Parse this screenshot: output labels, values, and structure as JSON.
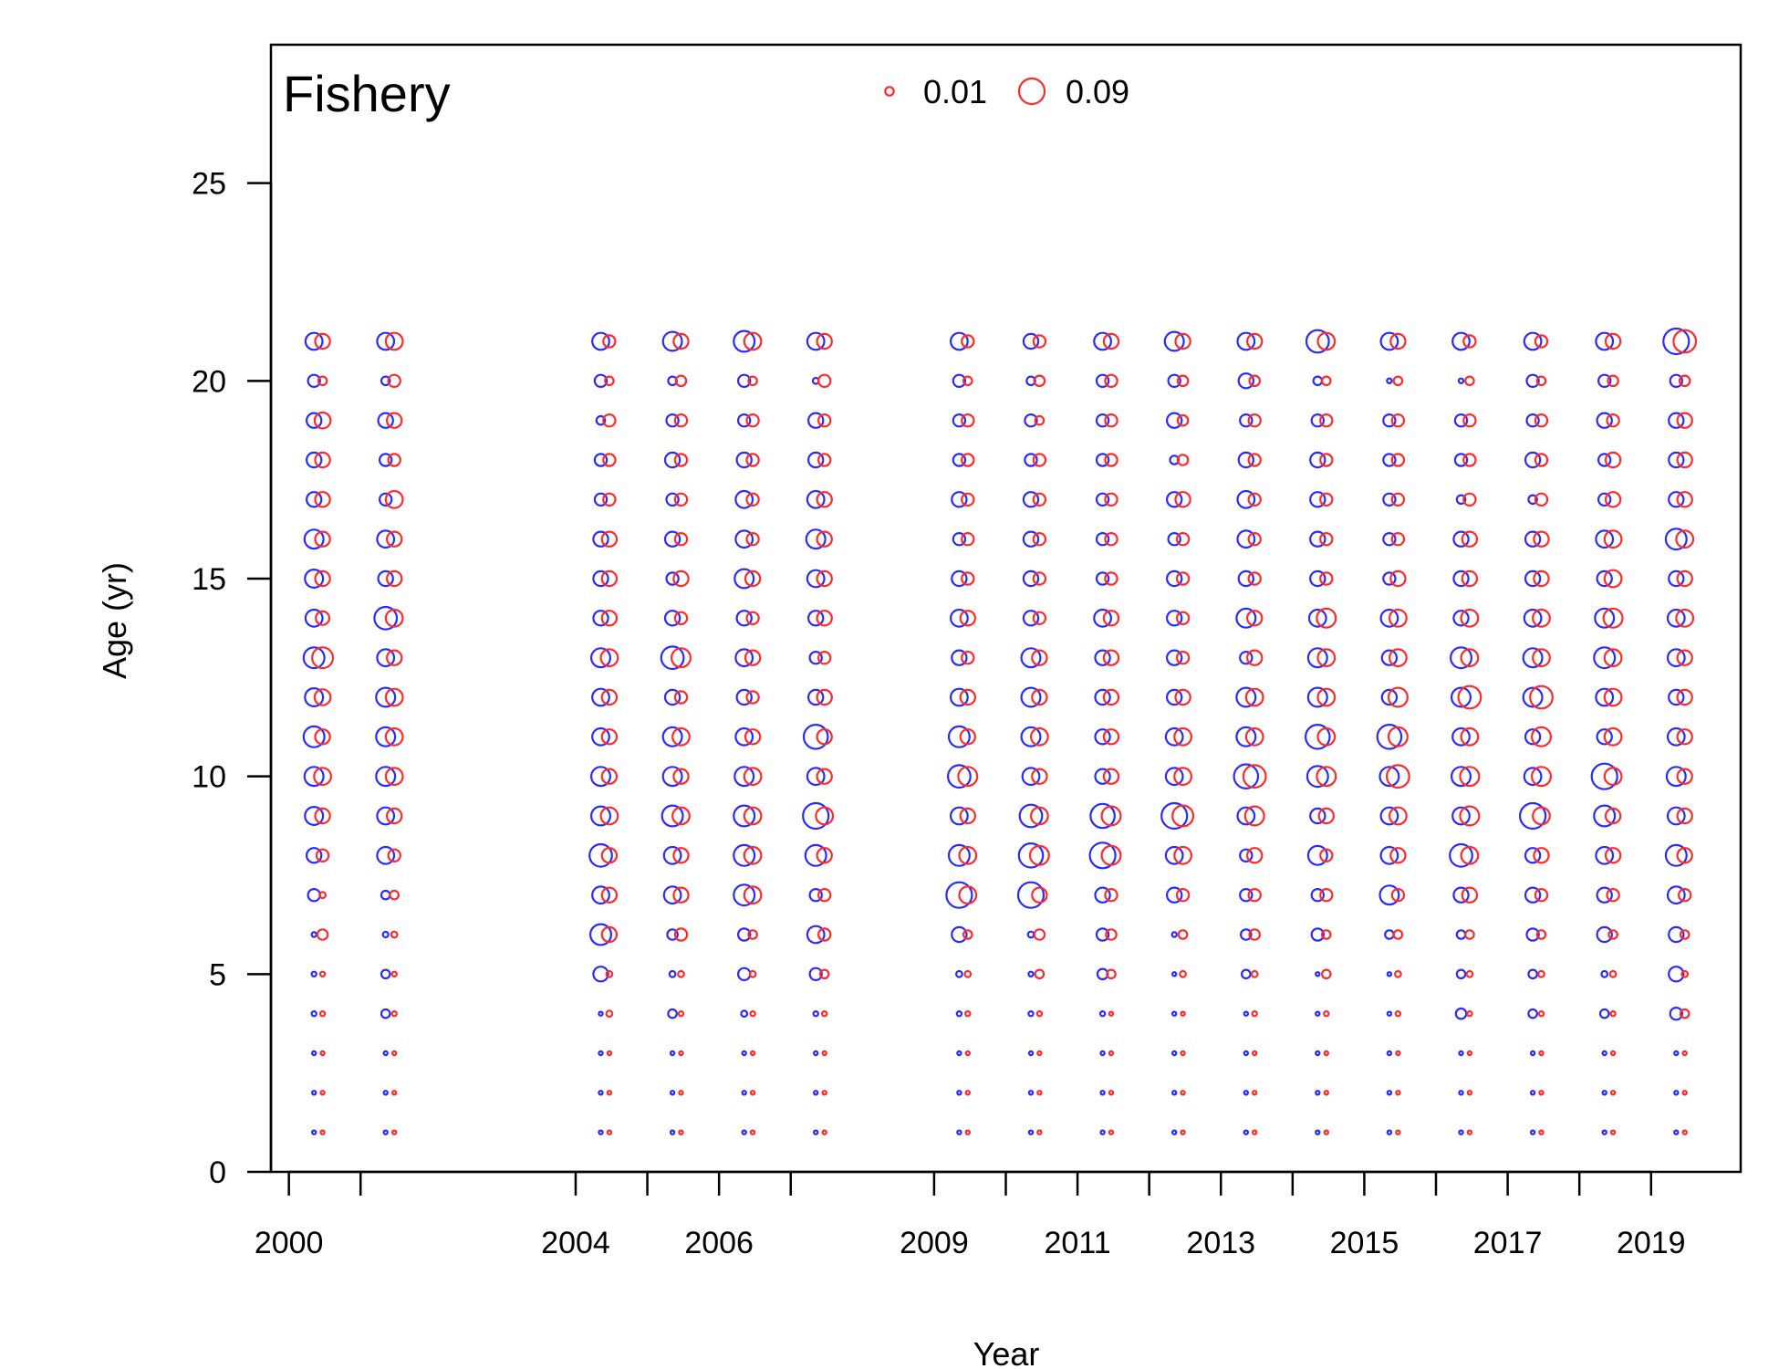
{
  "chart_data": {
    "type": "scatter",
    "title": "Fishery",
    "xlabel": "Year",
    "ylabel": "Age (yr)",
    "xlim": [
      1999.75,
      2020.25
    ],
    "ylim": [
      0,
      28.5
    ],
    "x_ticks": [
      2000,
      2001,
      2004,
      2005,
      2006,
      2007,
      2009,
      2010,
      2011,
      2012,
      2013,
      2014,
      2015,
      2016,
      2017,
      2018,
      2019
    ],
    "x_tick_labels": [
      "2000",
      "",
      "2004",
      "",
      "2006",
      "",
      "2009",
      "",
      "2011",
      "",
      "2013",
      "",
      "2015",
      "",
      "2017",
      "",
      "2019"
    ],
    "y_ticks": [
      0,
      5,
      10,
      15,
      20,
      25
    ],
    "y_tick_labels": [
      "0",
      "5",
      "10",
      "15",
      "20",
      "25"
    ],
    "grid": false,
    "legend_position": "top",
    "legend": [
      {
        "label": "0.01",
        "value": 0.01
      },
      {
        "label": "0.09",
        "value": 0.09
      }
    ],
    "colors": {
      "observed": "#2a2aff",
      "expected": "#ff2a2a"
    },
    "ages": [
      1,
      2,
      3,
      4,
      5,
      6,
      7,
      8,
      9,
      10,
      11,
      12,
      13,
      14,
      15,
      16,
      17,
      18,
      19,
      20,
      21
    ],
    "years": [
      2000,
      2001,
      2004,
      2005,
      2006,
      2007,
      2009,
      2010,
      2011,
      2012,
      2013,
      2014,
      2015,
      2016,
      2017,
      2018,
      2019
    ],
    "series": [
      {
        "values": [
          [
            0.002,
            0.002,
            0.002,
            0.003,
            0.003,
            0.003,
            0.02,
            0.03,
            0.045,
            0.05,
            0.06,
            0.045,
            0.06,
            0.04,
            0.045,
            0.05,
            0.03,
            0.03,
            0.03,
            0.02,
            0.04
          ],
          [
            0.002,
            0.002,
            0.002,
            0.01,
            0.01,
            0.004,
            0.01,
            0.04,
            0.04,
            0.05,
            0.05,
            0.05,
            0.04,
            0.07,
            0.03,
            0.04,
            0.02,
            0.02,
            0.03,
            0.01,
            0.04
          ],
          [
            0.002,
            0.002,
            0.002,
            0.002,
            0.03,
            0.06,
            0.04,
            0.07,
            0.05,
            0.05,
            0.04,
            0.04,
            0.05,
            0.03,
            0.03,
            0.03,
            0.02,
            0.02,
            0.01,
            0.02,
            0.04
          ],
          [
            0.002,
            0.002,
            0.002,
            0.01,
            0.005,
            0.015,
            0.04,
            0.04,
            0.06,
            0.05,
            0.05,
            0.03,
            0.07,
            0.03,
            0.02,
            0.03,
            0.02,
            0.03,
            0.02,
            0.01,
            0.05
          ],
          [
            0.002,
            0.002,
            0.002,
            0.005,
            0.02,
            0.02,
            0.06,
            0.06,
            0.06,
            0.05,
            0.04,
            0.03,
            0.04,
            0.03,
            0.05,
            0.04,
            0.04,
            0.03,
            0.02,
            0.02,
            0.06
          ],
          [
            0.002,
            0.002,
            0.002,
            0.003,
            0.02,
            0.04,
            0.02,
            0.06,
            0.09,
            0.04,
            0.08,
            0.03,
            0.02,
            0.03,
            0.04,
            0.05,
            0.04,
            0.03,
            0.03,
            0.005,
            0.04
          ],
          [
            0.002,
            0.002,
            0.002,
            0.003,
            0.005,
            0.03,
            0.09,
            0.06,
            0.04,
            0.07,
            0.06,
            0.04,
            0.03,
            0.04,
            0.03,
            0.02,
            0.03,
            0.02,
            0.02,
            0.02,
            0.04
          ],
          [
            0.002,
            0.002,
            0.002,
            0.003,
            0.003,
            0.005,
            0.09,
            0.08,
            0.07,
            0.04,
            0.05,
            0.05,
            0.05,
            0.03,
            0.03,
            0.03,
            0.03,
            0.02,
            0.02,
            0.01,
            0.03
          ],
          [
            0.002,
            0.002,
            0.002,
            0.003,
            0.015,
            0.02,
            0.03,
            0.09,
            0.08,
            0.03,
            0.03,
            0.03,
            0.03,
            0.04,
            0.02,
            0.02,
            0.02,
            0.02,
            0.02,
            0.02,
            0.04
          ],
          [
            0.002,
            0.002,
            0.002,
            0.002,
            0.002,
            0.003,
            0.03,
            0.04,
            0.09,
            0.04,
            0.04,
            0.03,
            0.03,
            0.03,
            0.03,
            0.02,
            0.03,
            0.01,
            0.03,
            0.02,
            0.05
          ],
          [
            0.002,
            0.002,
            0.002,
            0.002,
            0.01,
            0.015,
            0.02,
            0.02,
            0.04,
            0.08,
            0.05,
            0.05,
            0.02,
            0.05,
            0.03,
            0.04,
            0.04,
            0.03,
            0.02,
            0.03,
            0.04
          ],
          [
            0.002,
            0.002,
            0.002,
            0.002,
            0.002,
            0.02,
            0.02,
            0.05,
            0.03,
            0.06,
            0.08,
            0.05,
            0.05,
            0.04,
            0.03,
            0.03,
            0.03,
            0.03,
            0.02,
            0.01,
            0.07
          ],
          [
            0.002,
            0.002,
            0.002,
            0.002,
            0.002,
            0.01,
            0.05,
            0.04,
            0.04,
            0.05,
            0.08,
            0.03,
            0.03,
            0.04,
            0.02,
            0.02,
            0.02,
            0.02,
            0.02,
            0.003,
            0.04
          ],
          [
            0.002,
            0.002,
            0.002,
            0.015,
            0.01,
            0.01,
            0.03,
            0.07,
            0.04,
            0.05,
            0.04,
            0.05,
            0.06,
            0.03,
            0.03,
            0.03,
            0.01,
            0.02,
            0.02,
            0.003,
            0.04
          ],
          [
            0.002,
            0.002,
            0.002,
            0.01,
            0.01,
            0.02,
            0.03,
            0.03,
            0.09,
            0.04,
            0.03,
            0.05,
            0.05,
            0.04,
            0.03,
            0.03,
            0.01,
            0.03,
            0.02,
            0.02,
            0.04
          ],
          [
            0.002,
            0.002,
            0.002,
            0.01,
            0.005,
            0.03,
            0.03,
            0.04,
            0.06,
            0.09,
            0.03,
            0.04,
            0.06,
            0.05,
            0.03,
            0.04,
            0.02,
            0.02,
            0.03,
            0.02,
            0.04
          ],
          [
            0.002,
            0.002,
            0.002,
            0.02,
            0.03,
            0.03,
            0.04,
            0.06,
            0.04,
            0.05,
            0.04,
            0.03,
            0.04,
            0.04,
            0.03,
            0.06,
            0.03,
            0.03,
            0.03,
            0.02,
            0.09
          ]
        ]
      },
      {
        "values": [
          [
            0.002,
            0.002,
            0.002,
            0.003,
            0.003,
            0.015,
            0.005,
            0.02,
            0.03,
            0.04,
            0.03,
            0.035,
            0.06,
            0.025,
            0.03,
            0.03,
            0.03,
            0.03,
            0.035,
            0.01,
            0.03
          ],
          [
            0.002,
            0.002,
            0.002,
            0.003,
            0.003,
            0.005,
            0.01,
            0.02,
            0.03,
            0.04,
            0.04,
            0.04,
            0.03,
            0.04,
            0.03,
            0.03,
            0.04,
            0.02,
            0.03,
            0.02,
            0.04
          ],
          [
            0.002,
            0.002,
            0.002,
            0.005,
            0.005,
            0.03,
            0.03,
            0.03,
            0.04,
            0.03,
            0.03,
            0.03,
            0.04,
            0.03,
            0.03,
            0.03,
            0.02,
            0.02,
            0.02,
            0.01,
            0.02
          ],
          [
            0.002,
            0.002,
            0.002,
            0.003,
            0.005,
            0.02,
            0.03,
            0.03,
            0.04,
            0.03,
            0.04,
            0.02,
            0.05,
            0.02,
            0.03,
            0.02,
            0.02,
            0.02,
            0.02,
            0.015,
            0.03
          ],
          [
            0.002,
            0.002,
            0.002,
            0.003,
            0.005,
            0.01,
            0.04,
            0.04,
            0.04,
            0.04,
            0.03,
            0.02,
            0.03,
            0.02,
            0.03,
            0.02,
            0.02,
            0.02,
            0.02,
            0.01,
            0.04
          ],
          [
            0.002,
            0.002,
            0.002,
            0.003,
            0.01,
            0.02,
            0.02,
            0.03,
            0.04,
            0.03,
            0.03,
            0.03,
            0.02,
            0.03,
            0.03,
            0.03,
            0.03,
            0.02,
            0.02,
            0.02,
            0.03
          ],
          [
            0.002,
            0.002,
            0.002,
            0.003,
            0.005,
            0.01,
            0.04,
            0.04,
            0.03,
            0.05,
            0.03,
            0.03,
            0.02,
            0.03,
            0.02,
            0.02,
            0.02,
            0.02,
            0.02,
            0.01,
            0.02
          ],
          [
            0.002,
            0.002,
            0.002,
            0.003,
            0.01,
            0.015,
            0.03,
            0.05,
            0.04,
            0.03,
            0.04,
            0.03,
            0.03,
            0.02,
            0.02,
            0.02,
            0.02,
            0.02,
            0.01,
            0.015,
            0.02
          ],
          [
            0.002,
            0.002,
            0.002,
            0.002,
            0.01,
            0.015,
            0.02,
            0.05,
            0.05,
            0.03,
            0.03,
            0.03,
            0.03,
            0.03,
            0.02,
            0.02,
            0.02,
            0.02,
            0.02,
            0.02,
            0.03
          ],
          [
            0.002,
            0.002,
            0.002,
            0.002,
            0.005,
            0.01,
            0.02,
            0.04,
            0.06,
            0.04,
            0.04,
            0.03,
            0.02,
            0.02,
            0.02,
            0.02,
            0.03,
            0.015,
            0.015,
            0.015,
            0.03
          ],
          [
            0.002,
            0.002,
            0.002,
            0.003,
            0.005,
            0.015,
            0.02,
            0.03,
            0.05,
            0.07,
            0.04,
            0.04,
            0.03,
            0.03,
            0.02,
            0.02,
            0.02,
            0.02,
            0.02,
            0.015,
            0.03
          ],
          [
            0.002,
            0.002,
            0.002,
            0.003,
            0.01,
            0.01,
            0.02,
            0.02,
            0.03,
            0.05,
            0.04,
            0.04,
            0.04,
            0.05,
            0.02,
            0.02,
            0.02,
            0.02,
            0.02,
            0.01,
            0.04
          ],
          [
            0.002,
            0.002,
            0.002,
            0.003,
            0.005,
            0.01,
            0.02,
            0.03,
            0.04,
            0.07,
            0.05,
            0.05,
            0.04,
            0.04,
            0.03,
            0.02,
            0.02,
            0.02,
            0.02,
            0.01,
            0.03
          ],
          [
            0.002,
            0.002,
            0.002,
            0.003,
            0.005,
            0.01,
            0.03,
            0.04,
            0.05,
            0.05,
            0.04,
            0.07,
            0.04,
            0.04,
            0.03,
            0.03,
            0.02,
            0.02,
            0.02,
            0.01,
            0.02
          ],
          [
            0.002,
            0.002,
            0.002,
            0.003,
            0.005,
            0.01,
            0.02,
            0.03,
            0.04,
            0.05,
            0.05,
            0.07,
            0.04,
            0.04,
            0.03,
            0.03,
            0.02,
            0.02,
            0.02,
            0.01,
            0.02
          ],
          [
            0.002,
            0.002,
            0.002,
            0.003,
            0.005,
            0.01,
            0.02,
            0.03,
            0.03,
            0.04,
            0.04,
            0.04,
            0.04,
            0.05,
            0.04,
            0.04,
            0.03,
            0.03,
            0.02,
            0.015,
            0.03
          ],
          [
            0.002,
            0.002,
            0.002,
            0.01,
            0.005,
            0.01,
            0.02,
            0.03,
            0.03,
            0.03,
            0.03,
            0.03,
            0.03,
            0.04,
            0.03,
            0.04,
            0.03,
            0.03,
            0.03,
            0.015,
            0.07
          ]
        ]
      }
    ]
  }
}
